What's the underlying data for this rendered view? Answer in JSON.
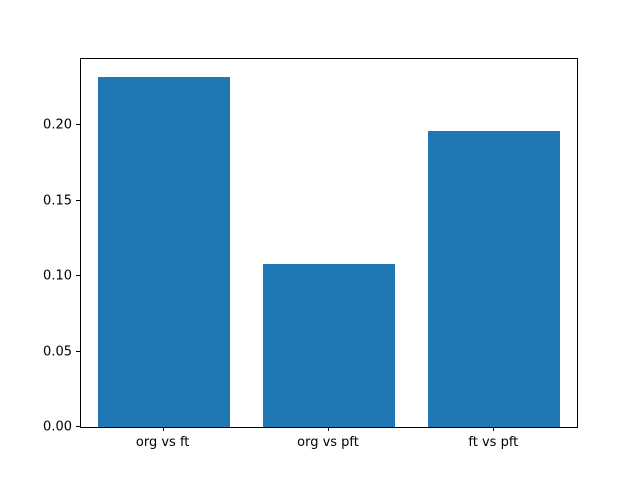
{
  "chart_data": {
    "type": "bar",
    "title": "",
    "xlabel": "",
    "ylabel": "",
    "categories": [
      "org vs ft",
      "org vs pft",
      "ft vs pft"
    ],
    "values": [
      0.232,
      0.108,
      0.196
    ],
    "yticks": [
      0.0,
      0.05,
      0.1,
      0.15,
      0.2
    ],
    "ytick_labels": [
      "0.00",
      "0.05",
      "0.10",
      "0.15",
      "0.20"
    ],
    "ylim": [
      0,
      0.244
    ],
    "bar_color": "#1f77b4",
    "bar_width_fraction": 0.8,
    "grid": false,
    "legend_position": "none"
  }
}
